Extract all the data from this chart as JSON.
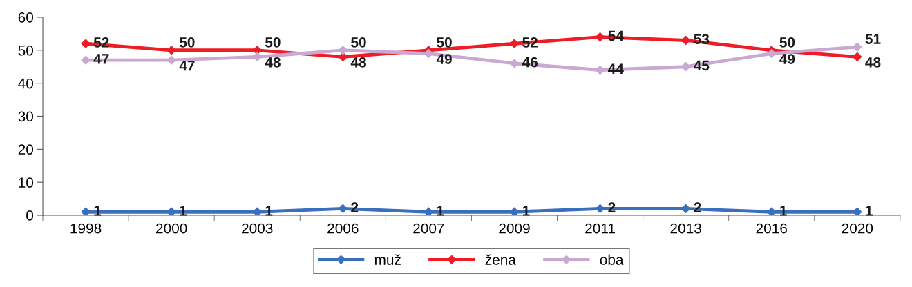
{
  "chart_data": {
    "type": "line",
    "categories": [
      "1998",
      "2000",
      "2003",
      "2006",
      "2007",
      "2009",
      "2011",
      "2013",
      "2016",
      "2020"
    ],
    "series": [
      {
        "name": "muž",
        "color": "#3a6fc0",
        "values": [
          1,
          1,
          1,
          2,
          1,
          1,
          2,
          2,
          1,
          1
        ]
      },
      {
        "name": "žena",
        "color": "#ee1c25",
        "values": [
          52,
          50,
          50,
          48,
          50,
          52,
          54,
          53,
          50,
          48
        ]
      },
      {
        "name": "oba",
        "color": "#c9a9d3",
        "values": [
          47,
          47,
          48,
          50,
          49,
          46,
          44,
          45,
          49,
          51
        ]
      }
    ],
    "ylim": [
      0,
      60
    ],
    "yticks": [
      0,
      10,
      20,
      30,
      40,
      50,
      60
    ],
    "grid": false,
    "legend": "bottom",
    "marker": "diamond",
    "line_style": "solid",
    "data_labels": true
  }
}
